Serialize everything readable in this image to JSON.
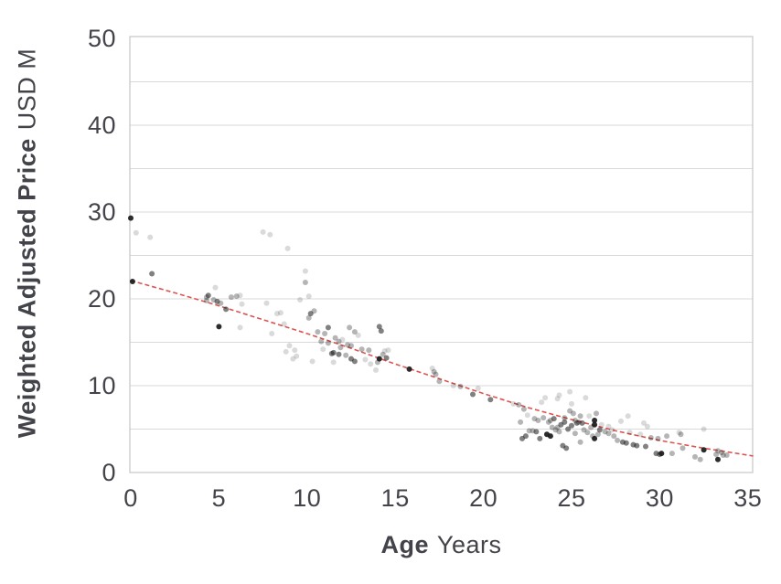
{
  "chart_data": {
    "type": "scatter",
    "title": "",
    "xlabel": {
      "bold": "Age",
      "regular": "Years"
    },
    "ylabel": {
      "bold": "Weighted Adjusted Price",
      "regular": "USD M"
    },
    "xlim": [
      0,
      35.3
    ],
    "ylim": [
      0,
      50
    ],
    "xticks": [
      0,
      5,
      10,
      15,
      20,
      25,
      30,
      35
    ],
    "yticks": [
      0,
      10,
      20,
      30,
      40,
      50
    ],
    "gridline_interval": 5,
    "grid": "horizontal-only",
    "legend": "none",
    "colors": {
      "points": "#1a1a1a",
      "trendline": "#dc5450",
      "gridline": "#d9d9d9",
      "frame": "#c6c6c6",
      "text": "#43444a"
    },
    "opacity_classes": {
      "light": 0.16,
      "mid": 0.32,
      "dark": 0.55,
      "black": 0.92
    },
    "trendline": {
      "style": "dashed",
      "points": [
        [
          0,
          22.1
        ],
        [
          2.5,
          20.7
        ],
        [
          5,
          19.2
        ],
        [
          7.5,
          17.6
        ],
        [
          10,
          16.0
        ],
        [
          12.5,
          14.3
        ],
        [
          15,
          12.5
        ],
        [
          17.5,
          10.8
        ],
        [
          20,
          9.1
        ],
        [
          22.5,
          7.5
        ],
        [
          25,
          6.1
        ],
        [
          27.5,
          4.8
        ],
        [
          30,
          3.7
        ],
        [
          32.5,
          2.8
        ],
        [
          35.3,
          1.9
        ]
      ]
    },
    "points": [
      [
        0,
        29.3,
        "black"
      ],
      [
        0.3,
        27.6,
        "light"
      ],
      [
        1.1,
        27.1,
        "light"
      ],
      [
        0.1,
        22.0,
        "black"
      ],
      [
        1.2,
        22.9,
        "dark"
      ],
      [
        4.3,
        20.2,
        "mid"
      ],
      [
        4.4,
        20.4,
        "dark"
      ],
      [
        4.3,
        19.8,
        "mid"
      ],
      [
        4.7,
        19.9,
        "mid"
      ],
      [
        4.8,
        21.3,
        "light"
      ],
      [
        4.9,
        19.7,
        "dark"
      ],
      [
        5.1,
        19.5,
        "mid"
      ],
      [
        5.4,
        18.8,
        "dark"
      ],
      [
        5.7,
        20.2,
        "mid"
      ],
      [
        6.0,
        20.3,
        "mid"
      ],
      [
        6.2,
        20.4,
        "light"
      ],
      [
        6.3,
        19.4,
        "light"
      ],
      [
        5.0,
        16.8,
        "black"
      ],
      [
        6.2,
        16.7,
        "light"
      ],
      [
        7.5,
        27.7,
        "light"
      ],
      [
        7.9,
        27.4,
        "light"
      ],
      [
        8.9,
        25.8,
        "light"
      ],
      [
        7.7,
        19.5,
        "light"
      ],
      [
        8.3,
        18.3,
        "light"
      ],
      [
        8.5,
        18.4,
        "light"
      ],
      [
        8.7,
        17.1,
        "light"
      ],
      [
        8.0,
        16.0,
        "light"
      ],
      [
        8.8,
        13.9,
        "light"
      ],
      [
        9.0,
        14.6,
        "light"
      ],
      [
        9.2,
        13.1,
        "light"
      ],
      [
        9.3,
        14.1,
        "light"
      ],
      [
        9.4,
        13.4,
        "light"
      ],
      [
        9.9,
        23.2,
        "light"
      ],
      [
        9.9,
        21.9,
        "mid"
      ],
      [
        9.6,
        19.9,
        "light"
      ],
      [
        10.1,
        20.3,
        "light"
      ],
      [
        10.2,
        18.3,
        "dark"
      ],
      [
        10.4,
        18.6,
        "mid"
      ],
      [
        10.1,
        17.8,
        "mid"
      ],
      [
        10.3,
        12.8,
        "light"
      ],
      [
        10.6,
        16.2,
        "mid"
      ],
      [
        10.8,
        15.1,
        "mid"
      ],
      [
        10.9,
        14.2,
        "light"
      ],
      [
        11.0,
        16.0,
        "mid"
      ],
      [
        11.2,
        14.9,
        "mid"
      ],
      [
        11.2,
        16.7,
        "dark"
      ],
      [
        11.4,
        13.7,
        "dark"
      ],
      [
        11.5,
        13.8,
        "dark"
      ],
      [
        11.6,
        15.5,
        "mid"
      ],
      [
        11.8,
        15.1,
        "mid"
      ],
      [
        11.8,
        13.6,
        "dark"
      ],
      [
        11.5,
        12.7,
        "light"
      ],
      [
        11.9,
        14.4,
        "mid"
      ],
      [
        12.0,
        15.3,
        "light"
      ],
      [
        12.2,
        13.5,
        "mid"
      ],
      [
        12.3,
        14.7,
        "mid"
      ],
      [
        12.4,
        16.7,
        "mid"
      ],
      [
        12.5,
        14.6,
        "mid"
      ],
      [
        12.5,
        13.1,
        "dark"
      ],
      [
        12.7,
        16.2,
        "mid"
      ],
      [
        12.7,
        12.8,
        "dark"
      ],
      [
        12.9,
        15.8,
        "light"
      ],
      [
        13.1,
        14.2,
        "mid"
      ],
      [
        13.3,
        13.0,
        "light"
      ],
      [
        13.5,
        14.1,
        "mid"
      ],
      [
        13.6,
        12.5,
        "light"
      ],
      [
        13.9,
        11.8,
        "light"
      ],
      [
        14.0,
        12.7,
        "mid"
      ],
      [
        14.1,
        16.8,
        "dark"
      ],
      [
        14.2,
        16.3,
        "dark"
      ],
      [
        14.1,
        13.1,
        "black"
      ],
      [
        14.3,
        13.6,
        "mid"
      ],
      [
        14.4,
        14.0,
        "light"
      ],
      [
        14.5,
        13.2,
        "dark"
      ],
      [
        14.6,
        14.1,
        "light"
      ],
      [
        15.8,
        11.9,
        "black"
      ],
      [
        17.1,
        12.0,
        "light"
      ],
      [
        17.2,
        11.6,
        "mid"
      ],
      [
        17.3,
        11.3,
        "mid"
      ],
      [
        17.5,
        10.5,
        "mid"
      ],
      [
        18.3,
        10.0,
        "light"
      ],
      [
        18.7,
        9.9,
        "mid"
      ],
      [
        19.4,
        9.0,
        "dark"
      ],
      [
        19.7,
        9.7,
        "light"
      ],
      [
        20.4,
        8.4,
        "dark"
      ],
      [
        21.7,
        7.9,
        "light"
      ],
      [
        22.0,
        7.8,
        "mid"
      ],
      [
        22.1,
        5.8,
        "mid"
      ],
      [
        22.3,
        7.3,
        "mid"
      ],
      [
        22.2,
        3.9,
        "dark"
      ],
      [
        22.4,
        4.2,
        "dark"
      ],
      [
        22.5,
        6.6,
        "light"
      ],
      [
        22.6,
        4.8,
        "mid"
      ],
      [
        22.8,
        4.8,
        "mid"
      ],
      [
        22.9,
        6.2,
        "mid"
      ],
      [
        23.0,
        4.7,
        "dark"
      ],
      [
        23.1,
        6.0,
        "mid"
      ],
      [
        23.2,
        3.9,
        "dark"
      ],
      [
        23.3,
        8.1,
        "light"
      ],
      [
        23.4,
        6.3,
        "mid"
      ],
      [
        23.5,
        8.6,
        "light"
      ],
      [
        23.6,
        4.4,
        "black"
      ],
      [
        23.7,
        5.8,
        "mid"
      ],
      [
        23.8,
        4.2,
        "black"
      ],
      [
        23.8,
        6.0,
        "mid"
      ],
      [
        23.9,
        5.2,
        "mid"
      ],
      [
        24.0,
        6.2,
        "dark"
      ],
      [
        24.1,
        4.9,
        "mid"
      ],
      [
        24.2,
        8.5,
        "light"
      ],
      [
        24.3,
        8.9,
        "light"
      ],
      [
        24.2,
        5.2,
        "mid"
      ],
      [
        24.3,
        4.7,
        "mid"
      ],
      [
        24.4,
        5.5,
        "dark"
      ],
      [
        24.5,
        3.1,
        "dark"
      ],
      [
        24.6,
        5.8,
        "dark"
      ],
      [
        24.6,
        6.3,
        "mid"
      ],
      [
        24.7,
        2.8,
        "dark"
      ],
      [
        24.8,
        5.0,
        "dark"
      ],
      [
        24.9,
        9.3,
        "light"
      ],
      [
        24.9,
        7.1,
        "mid"
      ],
      [
        25.0,
        7.9,
        "light"
      ],
      [
        25.0,
        5.4,
        "dark"
      ],
      [
        25.1,
        6.8,
        "mid"
      ],
      [
        25.2,
        6.0,
        "mid"
      ],
      [
        25.2,
        4.5,
        "mid"
      ],
      [
        25.3,
        5.7,
        "dark"
      ],
      [
        25.4,
        5.8,
        "mid"
      ],
      [
        25.5,
        6.5,
        "mid"
      ],
      [
        25.5,
        3.5,
        "mid"
      ],
      [
        25.6,
        5.7,
        "dark"
      ],
      [
        25.7,
        4.9,
        "mid"
      ],
      [
        25.8,
        8.6,
        "light"
      ],
      [
        25.9,
        4.6,
        "mid"
      ],
      [
        26.0,
        6.5,
        "light"
      ],
      [
        26.1,
        5.2,
        "mid"
      ],
      [
        26.2,
        4.2,
        "mid"
      ],
      [
        26.3,
        6.0,
        "black"
      ],
      [
        26.3,
        5.5,
        "black"
      ],
      [
        26.3,
        3.9,
        "black"
      ],
      [
        26.4,
        6.8,
        "mid"
      ],
      [
        26.5,
        4.4,
        "mid"
      ],
      [
        26.6,
        4.9,
        "dark"
      ],
      [
        26.7,
        5.5,
        "light"
      ],
      [
        26.9,
        4.7,
        "mid"
      ],
      [
        27.1,
        5.3,
        "light"
      ],
      [
        27.1,
        4.5,
        "mid"
      ],
      [
        27.3,
        4.9,
        "light"
      ],
      [
        27.4,
        4.2,
        "mid"
      ],
      [
        27.6,
        3.7,
        "mid"
      ],
      [
        27.8,
        5.9,
        "light"
      ],
      [
        27.9,
        3.5,
        "dark"
      ],
      [
        28.1,
        3.4,
        "dark"
      ],
      [
        28.2,
        6.5,
        "light"
      ],
      [
        28.3,
        4.6,
        "light"
      ],
      [
        28.5,
        3.2,
        "dark"
      ],
      [
        28.7,
        3.1,
        "dark"
      ],
      [
        28.9,
        4.4,
        "light"
      ],
      [
        29.1,
        5.7,
        "light"
      ],
      [
        29.2,
        3.0,
        "dark"
      ],
      [
        29.3,
        5.3,
        "light"
      ],
      [
        29.5,
        4.0,
        "mid"
      ],
      [
        29.9,
        3.9,
        "mid"
      ],
      [
        29.8,
        2.2,
        "dark"
      ],
      [
        30.0,
        2.1,
        "dark"
      ],
      [
        30.1,
        2.2,
        "black"
      ],
      [
        30.4,
        4.2,
        "mid"
      ],
      [
        30.7,
        2.2,
        "mid"
      ],
      [
        31.1,
        4.6,
        "light"
      ],
      [
        31.2,
        4.4,
        "mid"
      ],
      [
        31.3,
        2.8,
        "mid"
      ],
      [
        32.0,
        1.8,
        "mid"
      ],
      [
        32.3,
        1.5,
        "mid"
      ],
      [
        32.5,
        5.0,
        "light"
      ],
      [
        32.5,
        2.6,
        "black"
      ],
      [
        33.2,
        2.1,
        "mid"
      ],
      [
        33.3,
        2.5,
        "mid"
      ],
      [
        33.3,
        1.5,
        "black"
      ],
      [
        33.5,
        2.3,
        "mid"
      ],
      [
        33.6,
        2.0,
        "mid"
      ],
      [
        33.8,
        2.0,
        "mid"
      ]
    ]
  }
}
